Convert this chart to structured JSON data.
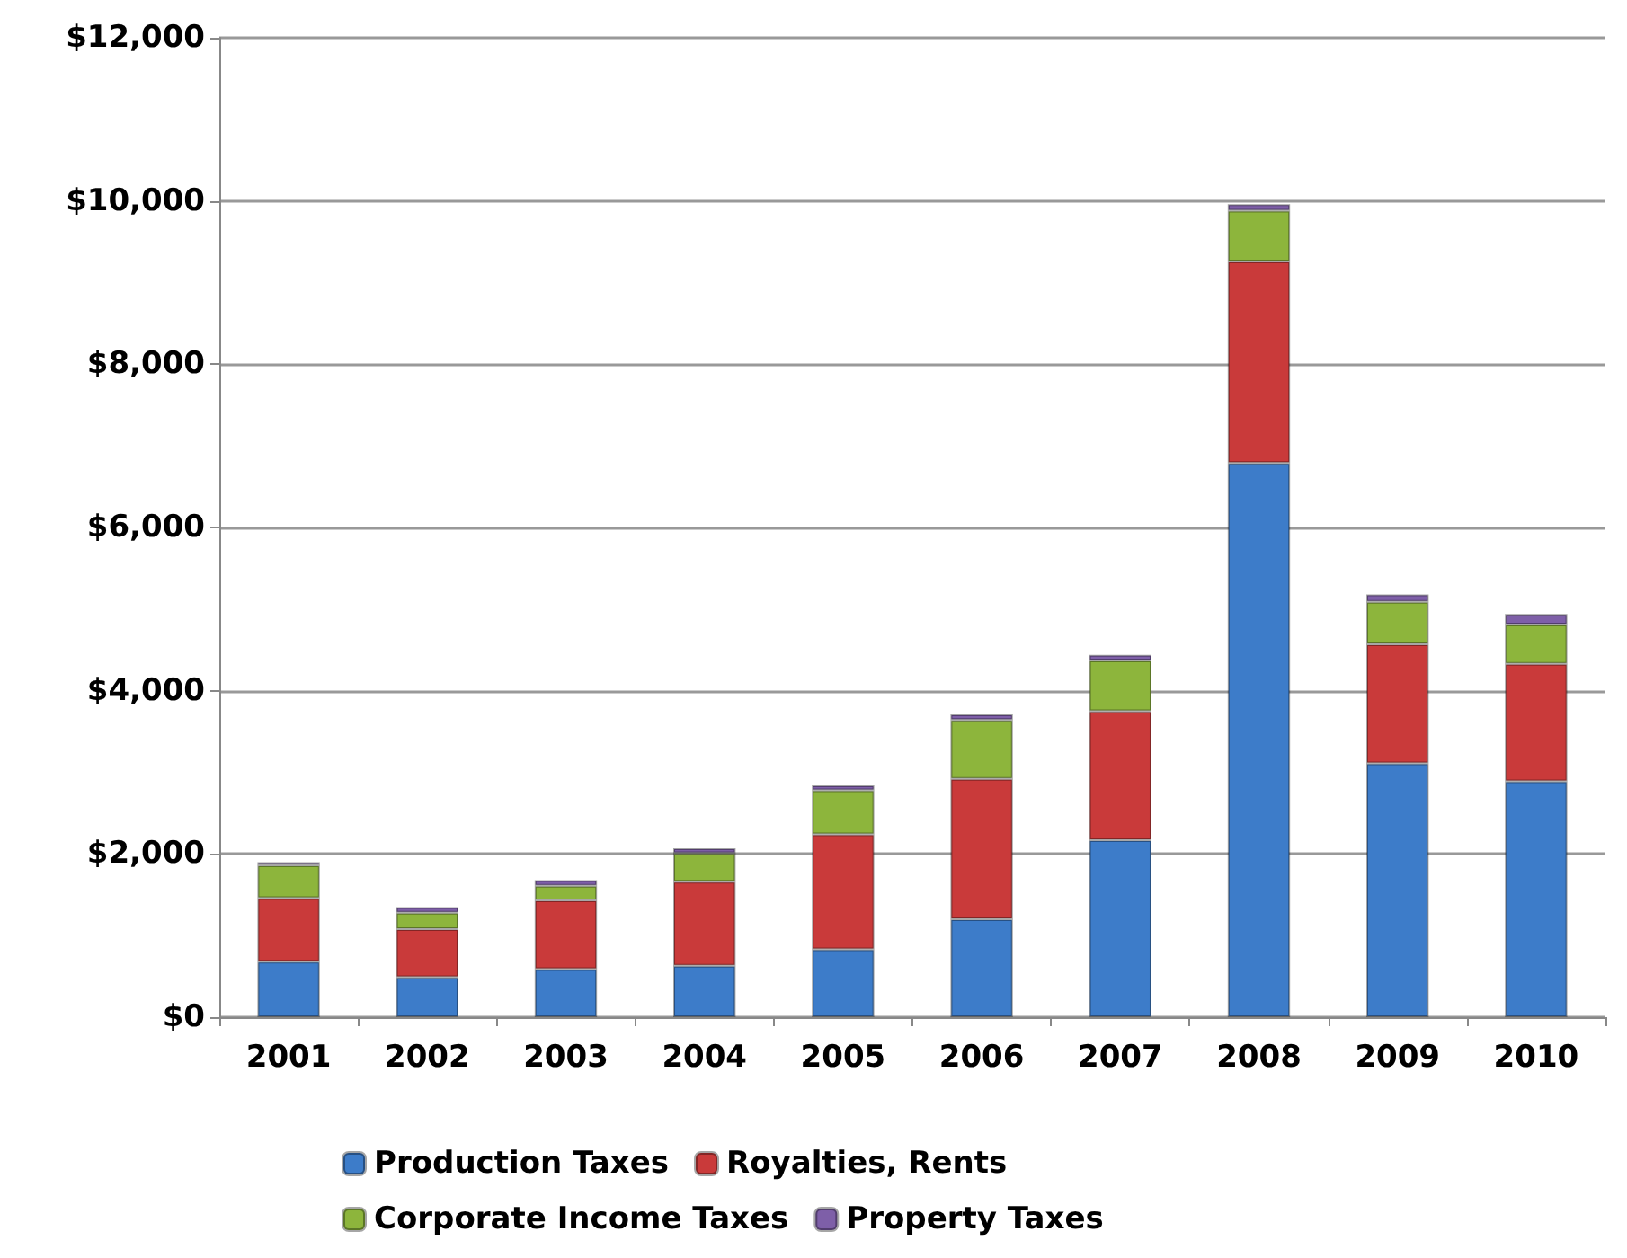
{
  "chart_data": {
    "type": "bar",
    "stacked": true,
    "categories": [
      "2001",
      "2002",
      "2003",
      "2004",
      "2005",
      "2006",
      "2007",
      "2008",
      "2009",
      "2010"
    ],
    "series": [
      {
        "name": "Production Taxes",
        "color": "#3d7cc9",
        "values": [
          680,
          490,
          590,
          630,
          830,
          1200,
          2170,
          6790,
          3110,
          2890
        ]
      },
      {
        "name": "Royalties, Rents",
        "color": "#c93a3a",
        "values": [
          780,
          590,
          840,
          1030,
          1410,
          1720,
          1580,
          2470,
          1460,
          1440
        ]
      },
      {
        "name": "Corporate Income Taxes",
        "color": "#8db53c",
        "values": [
          400,
          200,
          180,
          350,
          540,
          720,
          620,
          620,
          520,
          480
        ]
      },
      {
        "name": "Property Taxes",
        "color": "#7e5fa8",
        "values": [
          40,
          70,
          70,
          60,
          60,
          70,
          70,
          80,
          90,
          130
        ]
      }
    ],
    "ylim": [
      0,
      12000
    ],
    "yticks": [
      {
        "value": 0,
        "label": "$0"
      },
      {
        "value": 2000,
        "label": "$2,000"
      },
      {
        "value": 4000,
        "label": "$4,000"
      },
      {
        "value": 6000,
        "label": "$6,000"
      },
      {
        "value": 8000,
        "label": "$8,000"
      },
      {
        "value": 10000,
        "label": "$10,000"
      },
      {
        "value": 12000,
        "label": "$12,000"
      }
    ],
    "grid": "y",
    "legend": "bottom"
  }
}
